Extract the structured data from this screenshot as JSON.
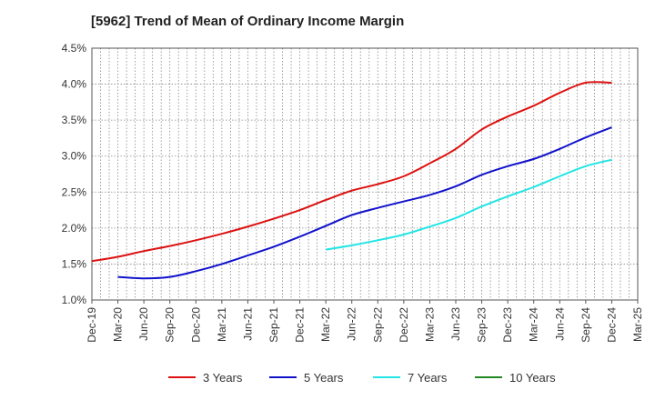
{
  "chart_data": {
    "type": "line",
    "title": "[5962]  Trend of Mean of Ordinary Income Margin",
    "xlabel": "",
    "ylabel": "",
    "categories": [
      "Dec-19",
      "Mar-20",
      "Jun-20",
      "Sep-20",
      "Dec-20",
      "Mar-21",
      "Jun-21",
      "Sep-21",
      "Dec-21",
      "Mar-22",
      "Jun-22",
      "Sep-22",
      "Dec-22",
      "Mar-23",
      "Jun-23",
      "Sep-23",
      "Dec-23",
      "Mar-24",
      "Jun-24",
      "Sep-24",
      "Dec-24",
      "Mar-25"
    ],
    "ylim": [
      1.0,
      4.5
    ],
    "yticks": [
      "1.0%",
      "1.5%",
      "2.0%",
      "2.5%",
      "3.0%",
      "3.5%",
      "4.0%",
      "4.5%"
    ],
    "grid": true,
    "legend_position": "bottom",
    "series": [
      {
        "name": "3 Years",
        "color": "#dd1111",
        "values": [
          1.54,
          1.6,
          1.68,
          1.75,
          1.83,
          1.92,
          2.02,
          2.13,
          2.25,
          2.39,
          2.52,
          2.61,
          2.72,
          2.9,
          3.1,
          3.37,
          3.55,
          3.7,
          3.88,
          4.02,
          4.02,
          null
        ]
      },
      {
        "name": "5 Years",
        "color": "#1111cc",
        "values": [
          null,
          1.32,
          1.3,
          1.32,
          1.4,
          1.5,
          1.62,
          1.74,
          1.88,
          2.03,
          2.18,
          2.28,
          2.37,
          2.46,
          2.58,
          2.74,
          2.86,
          2.96,
          3.1,
          3.26,
          3.4,
          null
        ]
      },
      {
        "name": "7 Years",
        "color": "#22e5e5",
        "values": [
          null,
          null,
          null,
          null,
          null,
          null,
          null,
          null,
          null,
          1.7,
          1.76,
          1.83,
          1.91,
          2.02,
          2.14,
          2.3,
          2.44,
          2.57,
          2.72,
          2.86,
          2.95,
          null
        ]
      },
      {
        "name": "10 Years",
        "color": "#228822",
        "values": [
          null,
          null,
          null,
          null,
          null,
          null,
          null,
          null,
          null,
          null,
          null,
          null,
          null,
          null,
          null,
          null,
          null,
          null,
          null,
          null,
          null,
          null
        ]
      }
    ]
  }
}
